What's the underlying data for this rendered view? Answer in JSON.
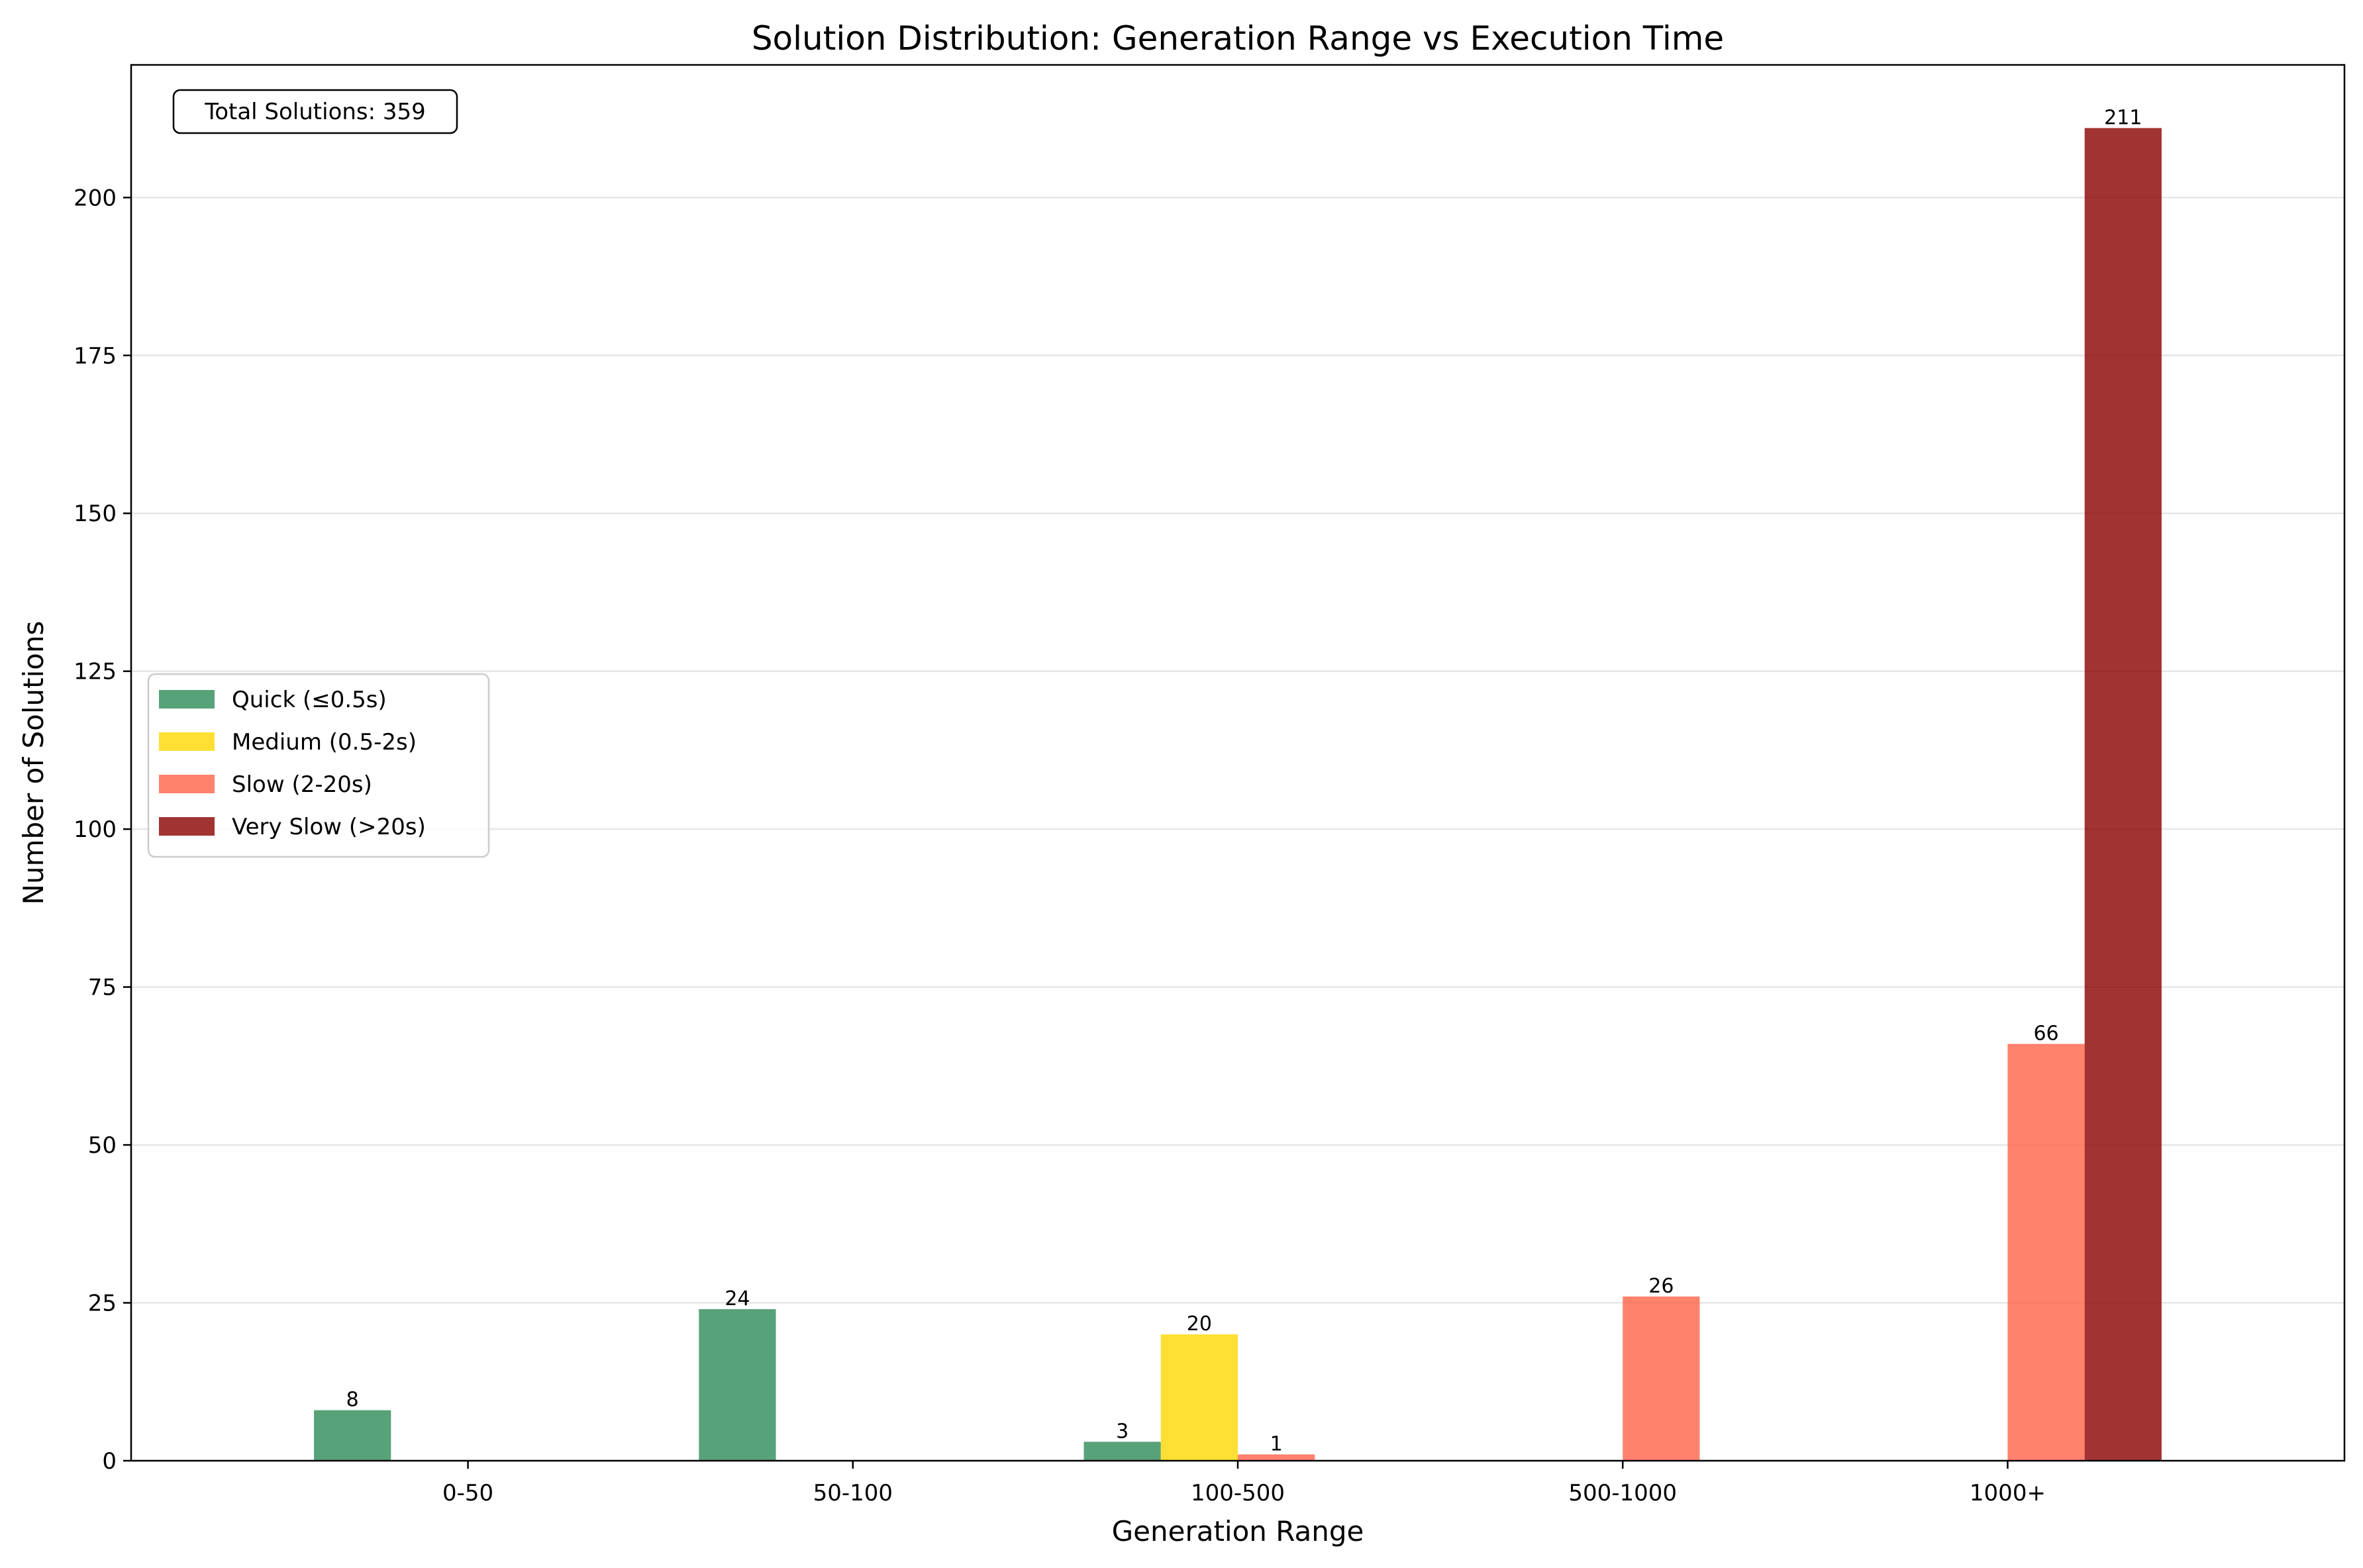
{
  "chart_data": {
    "type": "bar",
    "title": "Solution Distribution: Generation Range vs Execution Time",
    "xlabel": "Generation Range",
    "ylabel": "Number of Solutions",
    "categories": [
      "0-50",
      "50-100",
      "100-500",
      "500-1000",
      "1000+"
    ],
    "series": [
      {
        "name": "Quick (≤0.5s)",
        "color": "#2e8b57",
        "values": [
          8,
          24,
          3,
          0,
          0
        ]
      },
      {
        "name": "Medium (0.5-2s)",
        "color": "#ffd700",
        "values": [
          0,
          0,
          20,
          0,
          0
        ]
      },
      {
        "name": "Slow (2-20s)",
        "color": "#ff6347",
        "values": [
          0,
          0,
          1,
          26,
          66
        ]
      },
      {
        "name": "Very Slow (>20s)",
        "color": "#8b0000",
        "values": [
          0,
          0,
          0,
          0,
          211
        ]
      }
    ],
    "ylim": [
      0,
      221
    ],
    "yticks": [
      0,
      25,
      50,
      75,
      100,
      125,
      150,
      175,
      200
    ],
    "grid": "horizontal",
    "legend_position": "center-left",
    "annotation": "Total Solutions: 359"
  }
}
